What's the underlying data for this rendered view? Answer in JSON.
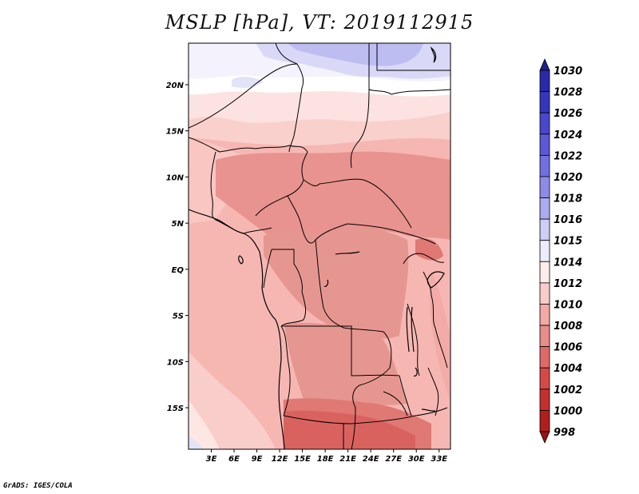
{
  "title": "MSLP [hPa], VT: 2019112915",
  "credit": "GrADS: IGES/COLA",
  "map": {
    "lat_labels": [
      "20N",
      "15N",
      "10N",
      "5N",
      "EQ",
      "5S",
      "10S",
      "15S"
    ],
    "lat_values": [
      20,
      15,
      10,
      5,
      0,
      -5,
      -10,
      -15
    ],
    "lon_labels": [
      "3E",
      "6E",
      "9E",
      "12E",
      "15E",
      "18E",
      "21E",
      "24E",
      "27E",
      "30E",
      "33E"
    ],
    "lon_values": [
      3,
      6,
      9,
      12,
      15,
      18,
      21,
      24,
      27,
      30,
      33
    ],
    "lon_range": [
      0,
      34.5
    ],
    "lat_range": [
      -19.5,
      24.5
    ]
  },
  "colorbar": {
    "labels": [
      "1030",
      "1028",
      "1026",
      "1024",
      "1022",
      "1020",
      "1018",
      "1016",
      "1015",
      "1014",
      "1012",
      "1010",
      "1008",
      "1006",
      "1004",
      "1002",
      "1000",
      "998"
    ],
    "colors": [
      "#20208a",
      "#2a2aa8",
      "#3636bd",
      "#4848cc",
      "#5a5ad6",
      "#7070e0",
      "#8c8ce8",
      "#ababf0",
      "#ceceF6",
      "#ececfb",
      "#fdecec",
      "#f9cccc",
      "#f3a9a6",
      "#e78d8a",
      "#df6a68",
      "#d54a48",
      "#c4302e",
      "#b01e1d",
      "#991414"
    ]
  }
}
